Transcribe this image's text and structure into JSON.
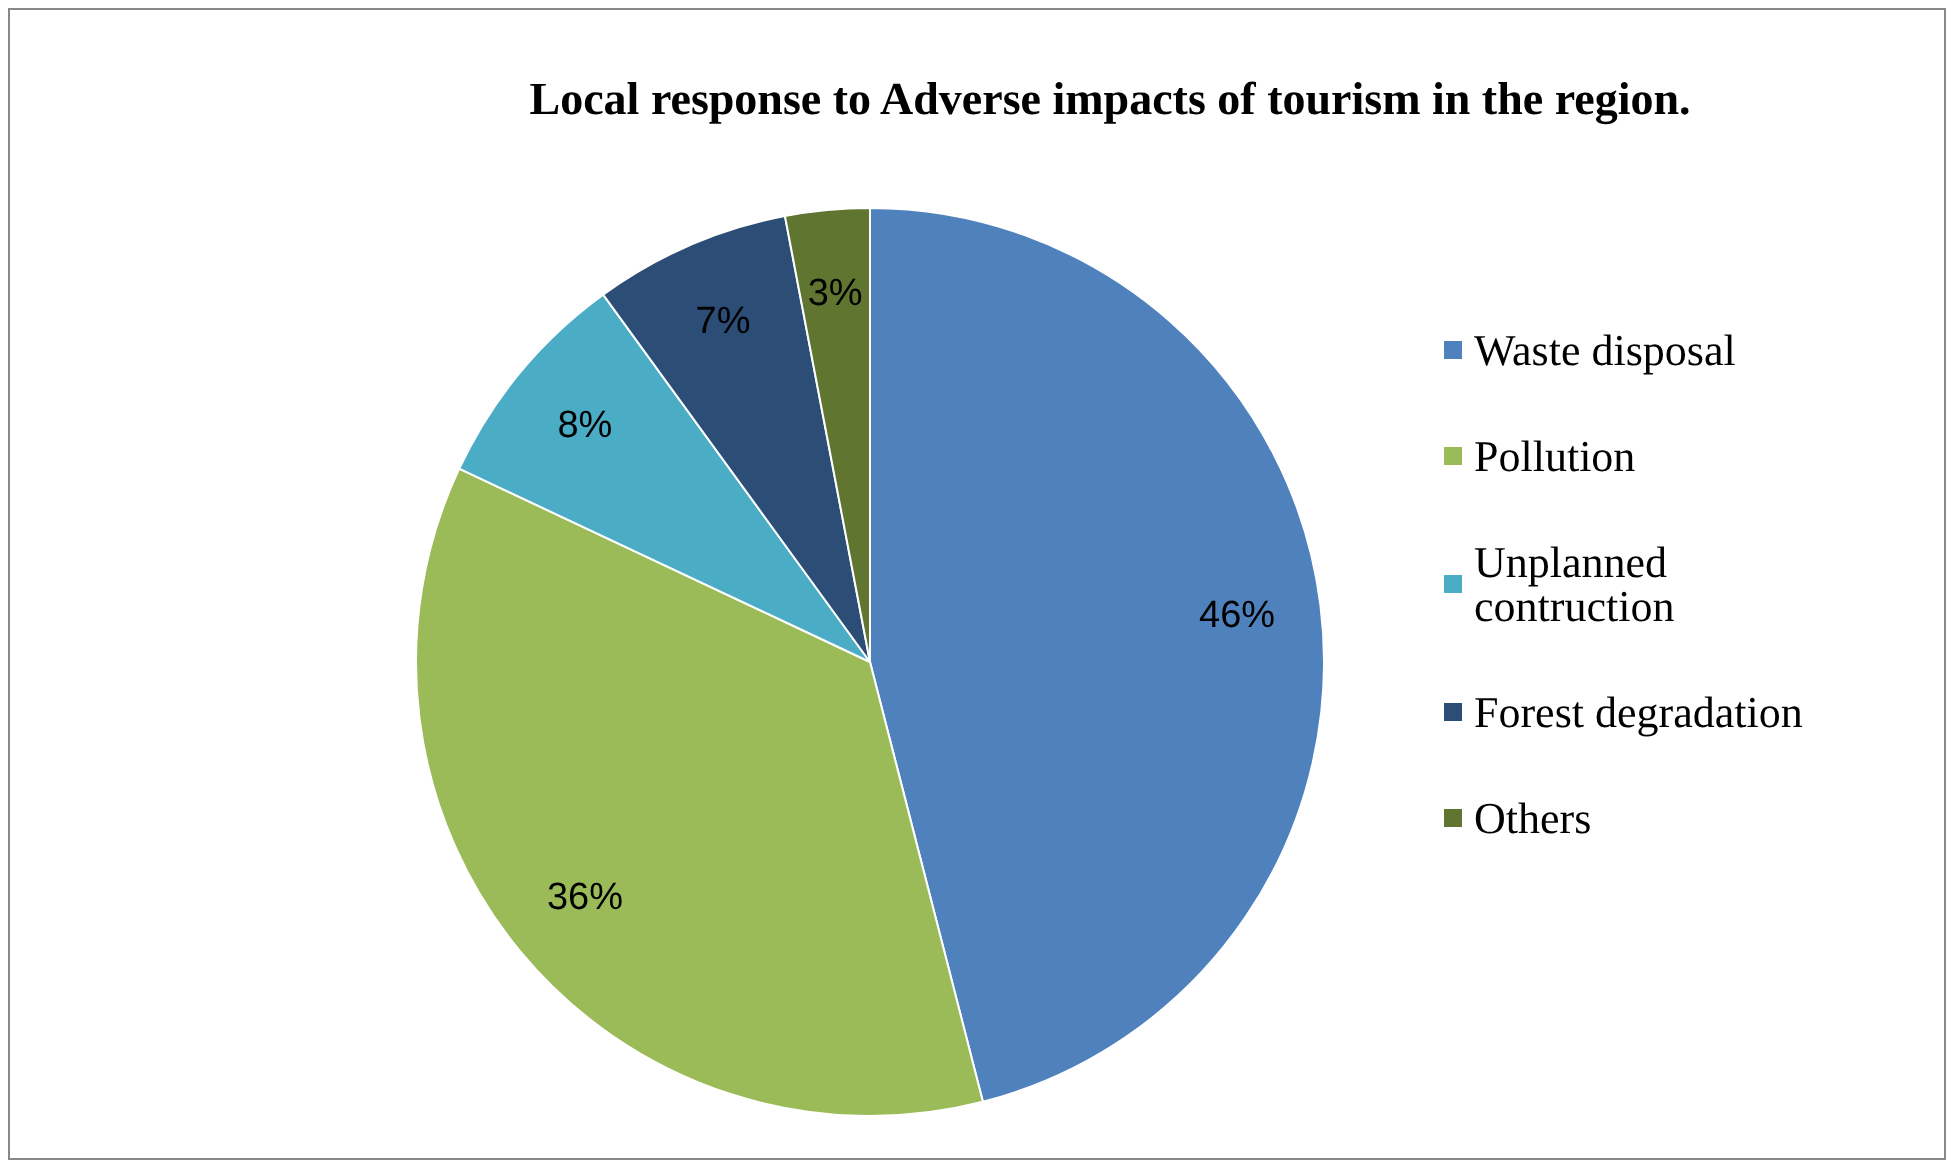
{
  "chart_data": {
    "type": "pie",
    "title": "Local response to Adverse impacts of tourism in the region.",
    "categories": [
      "Waste disposal",
      "Pollution",
      "Unplanned contruction",
      "Forest degradation",
      "Others"
    ],
    "values": [
      46,
      36,
      8,
      7,
      3
    ],
    "colors": [
      "#4f81bd",
      "#9bbb59",
      "#4bacc6",
      "#2c4d75",
      "#5f7530"
    ],
    "value_labels": [
      "46%",
      "36%",
      "8%",
      "7%",
      "3%"
    ],
    "legend": "right"
  }
}
